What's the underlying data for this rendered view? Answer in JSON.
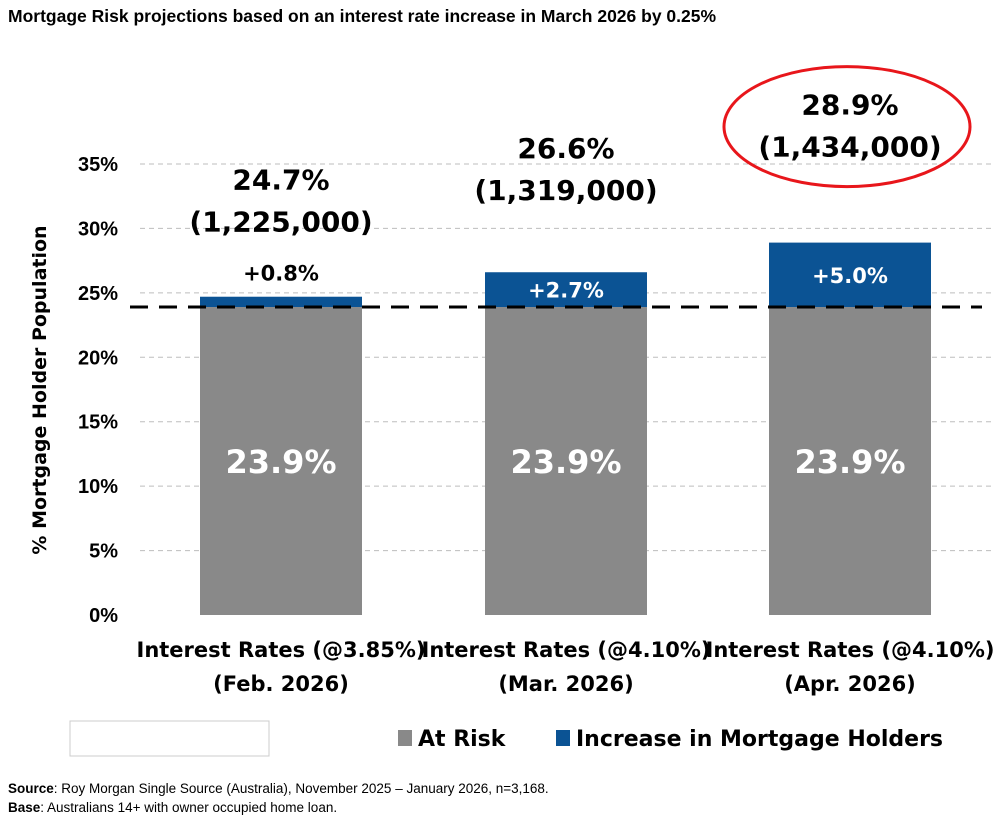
{
  "title": "Mortgage Risk projections based on an interest rate increase in March 2026 by 0.25%",
  "chart_data": {
    "type": "bar",
    "stacked": true,
    "ylabel": "% Mortgage Holder Population",
    "ylim": [
      0,
      35
    ],
    "yticks": [
      "0%",
      "5%",
      "10%",
      "15%",
      "20%",
      "25%",
      "30%",
      "35%"
    ],
    "grid": true,
    "categories": [
      [
        "Interest Rates (@3.85%)",
        "(Feb. 2026)"
      ],
      [
        "Interest Rates (@4.10%)",
        "(Mar. 2026)"
      ],
      [
        "Interest Rates (@4.10%)",
        "(Apr. 2026)"
      ]
    ],
    "series": [
      {
        "name": "At Risk",
        "color": "#898989",
        "values": [
          23.9,
          23.9,
          23.9
        ],
        "labels": [
          "23.9%",
          "23.9%",
          "23.9%"
        ]
      },
      {
        "name": "Increase in Mortgage Holders",
        "color": "#0B5394",
        "values": [
          0.8,
          2.7,
          5.0
        ],
        "labels": [
          "+0.8%",
          "+2.7%",
          "+5.0%"
        ]
      }
    ],
    "totals": [
      {
        "pct": "24.7%",
        "count": "(1,225,000)"
      },
      {
        "pct": "26.6%",
        "count": "(1,319,000)"
      },
      {
        "pct": "28.9%",
        "count": "(1,434,000)",
        "highlighted": true
      }
    ],
    "reference_line": 23.9,
    "highlight_color": "#E8161B",
    "legend_position": "bottom"
  },
  "source": {
    "label": "Source",
    "text": ": Roy Morgan Single Source (Australia), November 2025 – January 2026, n=3,168."
  },
  "base": {
    "label": "Base",
    "text": ": Australians 14+ with owner occupied home loan."
  }
}
